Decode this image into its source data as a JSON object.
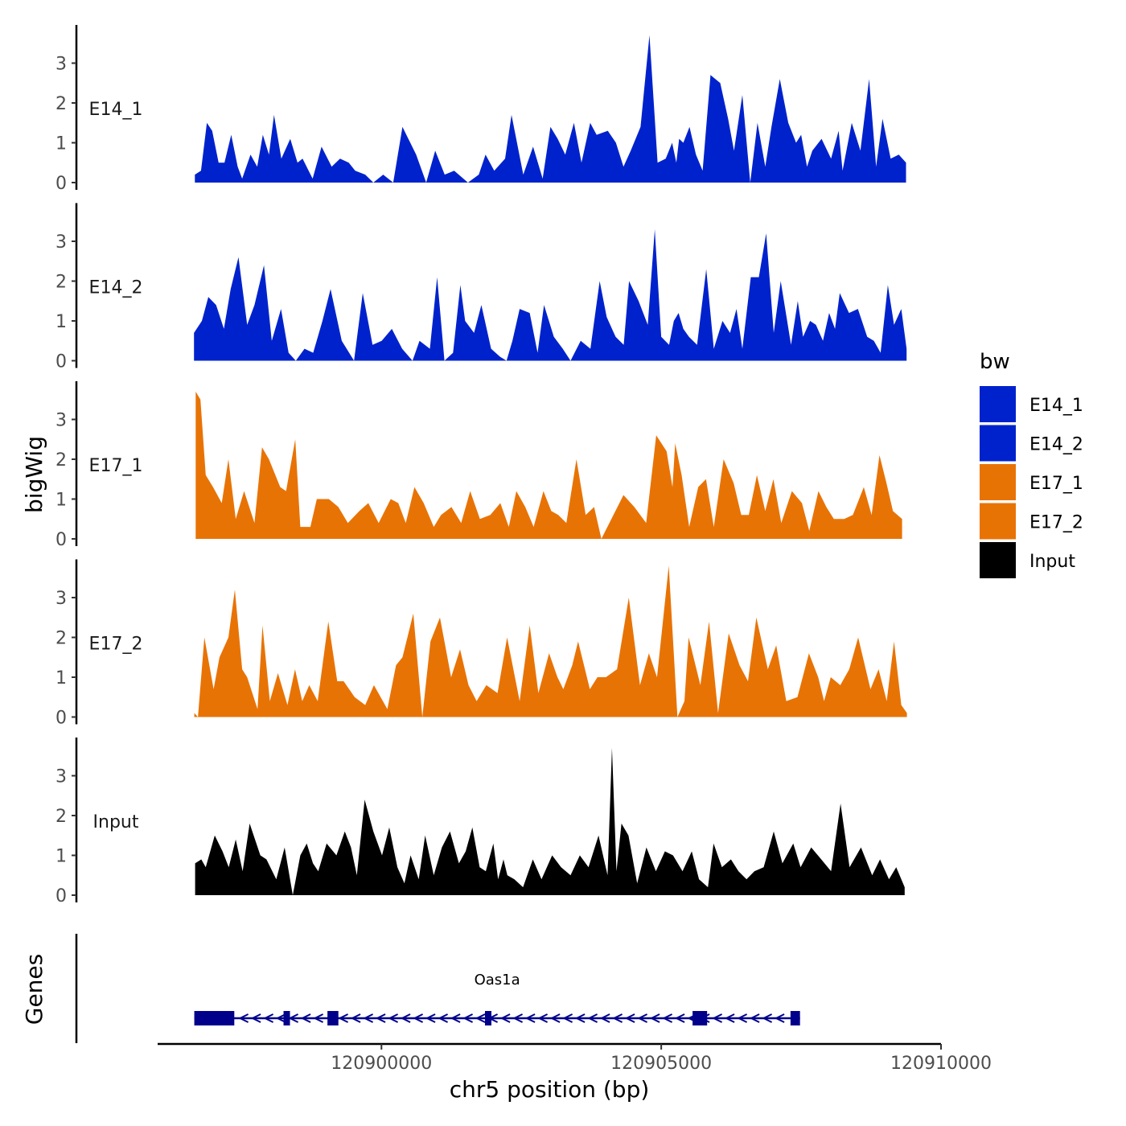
{
  "chart_data": {
    "type": "area",
    "ylabel": "bigWig",
    "xlabel": "chr5 position (bp)",
    "genes_label": "Genes",
    "xlim": [
      120896000,
      120910000
    ],
    "ylim": [
      0,
      3.9
    ],
    "yticks": [
      0,
      1,
      2,
      3
    ],
    "xticks": [
      {
        "value": 120900000,
        "label": "120900000"
      },
      {
        "value": 120905000,
        "label": "120905000"
      },
      {
        "value": 120910000,
        "label": "120910000"
      }
    ],
    "legend": {
      "title": "bw",
      "position": "right",
      "entries": [
        {
          "label": "E14_1",
          "color": "#0022CC"
        },
        {
          "label": "E14_2",
          "color": "#0022CC"
        },
        {
          "label": "E17_1",
          "color": "#E87305"
        },
        {
          "label": "E17_2",
          "color": "#E87305"
        },
        {
          "label": "Input",
          "color": "#000000"
        }
      ]
    },
    "tracks": [
      {
        "name": "E14_1",
        "color": "#0022CC",
        "x": [
          120896665,
          120896775,
          120896880,
          120896975,
          120897090,
          120897195,
          120897315,
          120897430,
          120897510,
          120897660,
          120897780,
          120897880,
          120897990,
          120898080,
          120898210,
          120898370,
          120898500,
          120898590,
          120898770,
          120898930,
          120899110,
          120899260,
          120899415,
          120899530,
          120899710,
          120899855,
          120900030,
          120900210,
          120900375,
          120900620,
          120900800,
          120900960,
          120901130,
          120901300,
          120901545,
          120901740,
          120901860,
          120902015,
          120902210,
          120902325,
          120902535,
          120902710,
          120902880,
          120903020,
          120903150,
          120903285,
          120903440,
          120903575,
          120903730,
          120903845,
          120904045,
          120904190,
          120904325,
          120904455,
          120904630,
          120904790,
          120904935,
          120905080,
          120905195,
          120905270,
          120905320,
          120905395,
          120905505,
          120905620,
          120905740,
          120905880,
          120906055,
          120906195,
          120906300,
          120906450,
          120906590,
          120906720,
          120906860,
          120906970,
          120907120,
          120907270,
          120907410,
          120907500,
          120907605,
          120907700,
          120907865,
          120908035,
          120908170,
          120908240,
          120908405,
          120908560,
          120908715,
          120908840,
          120908955,
          120909100,
          120909245,
          120909375
        ],
        "y": [
          0.2,
          0.3,
          1.5,
          1.3,
          0.5,
          0.5,
          1.2,
          0.4,
          0.1,
          0.7,
          0.4,
          1.2,
          0.7,
          1.7,
          0.6,
          1.1,
          0.5,
          0.6,
          0.1,
          0.9,
          0.4,
          0.6,
          0.5,
          0.3,
          0.2,
          0,
          0.2,
          0,
          1.4,
          0.7,
          0,
          0.8,
          0.2,
          0.3,
          0,
          0.2,
          0.7,
          0.3,
          0.6,
          1.7,
          0.2,
          0.9,
          0.1,
          1.4,
          1.1,
          0.7,
          1.5,
          0.5,
          1.5,
          1.2,
          1.3,
          1.0,
          0.4,
          0.8,
          1.4,
          3.7,
          0.5,
          0.6,
          1.0,
          0.5,
          1.1,
          1.0,
          1.4,
          0.7,
          0.3,
          2.7,
          2.5,
          1.6,
          0.8,
          2.2,
          0,
          1.5,
          0.4,
          1.4,
          2.6,
          1.5,
          1.0,
          1.2,
          0.4,
          0.8,
          1.1,
          0.6,
          1.3,
          0.3,
          1.5,
          0.8,
          2.6,
          0.4,
          1.6,
          0.6,
          0.7,
          0.5
        ]
      },
      {
        "name": "E14_2",
        "color": "#0022CC",
        "x": [
          120896650,
          120896790,
          120896905,
          120897045,
          120897185,
          120897305,
          120897445,
          120897600,
          120897730,
          120897900,
          120898040,
          120898205,
          120898340,
          120898470,
          120898625,
          120898780,
          120898945,
          120899090,
          120899290,
          120899510,
          120899665,
          120899840,
          120900005,
          120900185,
          120900370,
          120900555,
          120900680,
          120900865,
          120900995,
          120901125,
          120901280,
          120901410,
          120901495,
          120901655,
          120901785,
          120901960,
          120902120,
          120902235,
          120902340,
          120902470,
          120902650,
          120902790,
          120902905,
          120903080,
          120903240,
          120903380,
          120903560,
          120903735,
          120903900,
          120904025,
          120904185,
          120904330,
          120904425,
          120904595,
          120904760,
          120904885,
          120905000,
          120905140,
          120905225,
          120905310,
          120905395,
          120905495,
          120905640,
          120905805,
          120905940,
          120906095,
          120906230,
          120906345,
          120906450,
          120906600,
          120906745,
          120906875,
          120907010,
          120907135,
          120907320,
          120907440,
          120907535,
          120907660,
          120907765,
          120907890,
          120908000,
          120908105,
          120908190,
          120908355,
          120908515,
          120908680,
          120908800,
          120908920,
          120909050,
          120909160,
          120909290,
          120909385
        ],
        "y": [
          0.7,
          1.0,
          1.6,
          1.4,
          0.8,
          1.8,
          2.6,
          0.9,
          1.4,
          2.4,
          0.5,
          1.3,
          0.2,
          0,
          0.3,
          0.2,
          1.0,
          1.8,
          0.5,
          0,
          1.7,
          0.4,
          0.5,
          0.8,
          0.3,
          0,
          0.5,
          0.3,
          2.1,
          0,
          0.2,
          1.9,
          1.0,
          0.7,
          1.4,
          0.3,
          0.1,
          0,
          0.5,
          1.3,
          1.2,
          0.2,
          1.4,
          0.6,
          0.3,
          0,
          0.5,
          0.3,
          2.0,
          1.1,
          0.6,
          0.4,
          2.0,
          1.5,
          0.9,
          3.3,
          0.6,
          0.4,
          1.0,
          1.2,
          0.8,
          0.6,
          0.4,
          2.3,
          0.3,
          1.0,
          0.7,
          1.3,
          0.3,
          2.1,
          2.1,
          3.2,
          0.7,
          2.0,
          0.4,
          1.5,
          0.6,
          1.0,
          0.9,
          0.5,
          1.2,
          0.8,
          1.7,
          1.2,
          1.3,
          0.6,
          0.5,
          0.2,
          1.9,
          0.9,
          1.3,
          0.3
        ]
      },
      {
        "name": "E17_1",
        "color": "#E87305",
        "x": [
          120896680,
          120896765,
          120896860,
          120896990,
          120897145,
          120897265,
          120897395,
          120897545,
          120897730,
          120897865,
          120897990,
          120898190,
          120898295,
          120898460,
          120898550,
          120898730,
          120898845,
          120899060,
          120899230,
          120899400,
          120899605,
          120899765,
          120899950,
          120900165,
          120900300,
          120900435,
          120900590,
          120900755,
          120900935,
          120901065,
          120901250,
          120901425,
          120901585,
          120901760,
          120901945,
          120902125,
          120902275,
          120902410,
          120902570,
          120902720,
          120902895,
          120903035,
          120903160,
          120903305,
          120903485,
          120903650,
          120903800,
          120903930,
          120904145,
          120904325,
          120904520,
          120904730,
          120904910,
          120905095,
          120905200,
          120905250,
          120905365,
          120905500,
          120905660,
          120905800,
          120905940,
          120906115,
          120906295,
          120906430,
          120906565,
          120906710,
          120906860,
          120907005,
          120907145,
          120907335,
          120907515,
          120907645,
          120907810,
          120907950,
          120908085,
          120908270,
          120908425,
          120908620,
          120908760,
          120908900,
          120909025,
          120909140,
          120909305
        ],
        "y": [
          3.7,
          3.5,
          1.6,
          1.3,
          0.9,
          2.0,
          0.5,
          1.2,
          0.4,
          2.3,
          2.0,
          1.3,
          1.2,
          2.5,
          0.3,
          0.3,
          1.0,
          1.0,
          0.8,
          0.4,
          0.7,
          0.9,
          0.4,
          1.0,
          0.9,
          0.4,
          1.3,
          0.9,
          0.3,
          0.6,
          0.8,
          0.4,
          1.2,
          0.5,
          0.6,
          0.9,
          0.3,
          1.2,
          0.8,
          0.3,
          1.2,
          0.7,
          0.6,
          0.4,
          2.0,
          0.6,
          0.8,
          0,
          0.6,
          1.1,
          0.8,
          0.4,
          2.6,
          2.2,
          1.3,
          2.4,
          1.6,
          0.3,
          1.3,
          1.5,
          0.3,
          2.0,
          1.4,
          0.6,
          0.6,
          1.6,
          0.7,
          1.5,
          0.4,
          1.2,
          0.9,
          0.2,
          1.2,
          0.8,
          0.5,
          0.5,
          0.6,
          1.3,
          0.6,
          2.1,
          1.4,
          0.7,
          0.5
        ]
      },
      {
        "name": "E17_2",
        "color": "#E87305",
        "x": [
          120896655,
          120896720,
          120896835,
          120897000,
          120897105,
          120897265,
          120897380,
          120897510,
          120897600,
          120897785,
          120897875,
          120898005,
          120898150,
          120898320,
          120898455,
          120898585,
          120898710,
          120898860,
          120899050,
          120899210,
          120899325,
          120899520,
          120899710,
          120899865,
          120900105,
          120900260,
          120900375,
          120900570,
          120900730,
          120900875,
          120901045,
          120901245,
          120901405,
          120901555,
          120901700,
          120901875,
          120902075,
          120902245,
          120902470,
          120902650,
          120902805,
          120902995,
          120903145,
          120903250,
          120903410,
          120903515,
          120903725,
          120903860,
          120904010,
          120904210,
          120904420,
          120904620,
          120904780,
          120904925,
          120905135,
          120905290,
          120905415,
          120905490,
          120905700,
          120905855,
          120906015,
          120906205,
          120906400,
          120906550,
          120906700,
          120906905,
          120907055,
          120907235,
          120907435,
          120907640,
          120907805,
          120907910,
          120908030,
          120908200,
          120908360,
          120908520,
          120908740,
          120908885,
          120909030,
          120909160,
          120909290,
          120909390
        ],
        "y": [
          0.1,
          0,
          2.0,
          0.7,
          1.5,
          2.0,
          3.2,
          1.2,
          1.0,
          0.2,
          2.3,
          0.4,
          1.1,
          0.3,
          1.2,
          0.4,
          0.8,
          0.4,
          2.4,
          0.9,
          0.9,
          0.5,
          0.3,
          0.8,
          0.2,
          1.3,
          1.5,
          2.6,
          0,
          1.9,
          2.5,
          1.0,
          1.7,
          0.8,
          0.4,
          0.8,
          0.6,
          2.0,
          0.4,
          2.3,
          0.6,
          1.6,
          1.0,
          0.7,
          1.3,
          1.9,
          0.7,
          1.0,
          1.0,
          1.2,
          3.0,
          0.8,
          1.6,
          1.0,
          3.8,
          0,
          0.4,
          2.0,
          0.8,
          2.4,
          0.1,
          2.1,
          1.3,
          0.9,
          2.5,
          1.2,
          1.8,
          0.4,
          0.5,
          1.6,
          1.0,
          0.4,
          1.0,
          0.8,
          1.2,
          2.0,
          0.7,
          1.2,
          0.4,
          1.9,
          0.3,
          0.1
        ]
      },
      {
        "name": "Input",
        "color": "#000000",
        "x": [
          120896670,
          120896780,
          120896860,
          120897020,
          120897160,
          120897270,
          120897395,
          120897520,
          120897645,
          120897835,
          120897945,
          120898120,
          120898270,
          120898415,
          120898550,
          120898665,
          120898775,
          120898870,
          120899020,
          120899195,
          120899345,
          120899455,
          120899560,
          120899700,
          120899855,
          120900010,
          120900140,
          120900285,
          120900410,
          120900520,
          120900665,
          120900780,
          120900935,
          120901080,
          120901225,
          120901385,
          120901505,
          120901625,
          120901755,
          120901865,
          120902000,
          120902085,
          120902180,
          120902250,
          120902375,
          120902530,
          120902705,
          120902860,
          120903050,
          120903210,
          120903380,
          120903545,
          120903700,
          120903880,
          120904040,
          120904120,
          120904200,
          120904290,
          120904415,
          120904570,
          120904735,
          120904905,
          120905065,
          120905210,
          120905380,
          120905545,
          120905675,
          120905835,
          120905935,
          120906085,
          120906245,
          120906380,
          120906525,
          120906665,
          120906830,
          120907010,
          120907165,
          120907360,
          120907490,
          120907680,
          120907860,
          120908035,
          120908205,
          120908365,
          120908570,
          120908770,
          120908910,
          120909070,
          120909200,
          120909350
        ],
        "y": [
          0.8,
          0.9,
          0.7,
          1.5,
          1.1,
          0.7,
          1.4,
          0.6,
          1.8,
          1.0,
          0.9,
          0.4,
          1.2,
          0,
          1.0,
          1.3,
          0.8,
          0.6,
          1.3,
          1.0,
          1.6,
          1.2,
          0.5,
          2.4,
          1.6,
          1.0,
          1.7,
          0.7,
          0.3,
          1.0,
          0.4,
          1.5,
          0.5,
          1.2,
          1.6,
          0.8,
          1.1,
          1.7,
          0.7,
          0.6,
          1.3,
          0.4,
          0.9,
          0.5,
          0.4,
          0.2,
          0.9,
          0.4,
          1.0,
          0.7,
          0.5,
          1.0,
          0.7,
          1.5,
          0.5,
          3.7,
          0.6,
          1.8,
          1.5,
          0.3,
          1.2,
          0.6,
          1.1,
          1.0,
          0.6,
          1.1,
          0.4,
          0.2,
          1.3,
          0.7,
          0.9,
          0.6,
          0.4,
          0.6,
          0.7,
          1.6,
          0.8,
          1.3,
          0.7,
          1.2,
          0.9,
          0.6,
          2.3,
          0.7,
          1.2,
          0.5,
          0.9,
          0.4,
          0.7,
          0.2
        ]
      }
    ],
    "gene": {
      "name": "Oas1a",
      "color": "#00008B",
      "strand": "-",
      "start": 120896655,
      "end": 120907480,
      "exons": [
        [
          120896655,
          120897370
        ],
        [
          120898250,
          120898360
        ],
        [
          120899035,
          120899230
        ],
        [
          120901850,
          120901940
        ],
        [
          120905560,
          120905820
        ],
        [
          120907310,
          120907480
        ]
      ]
    }
  }
}
